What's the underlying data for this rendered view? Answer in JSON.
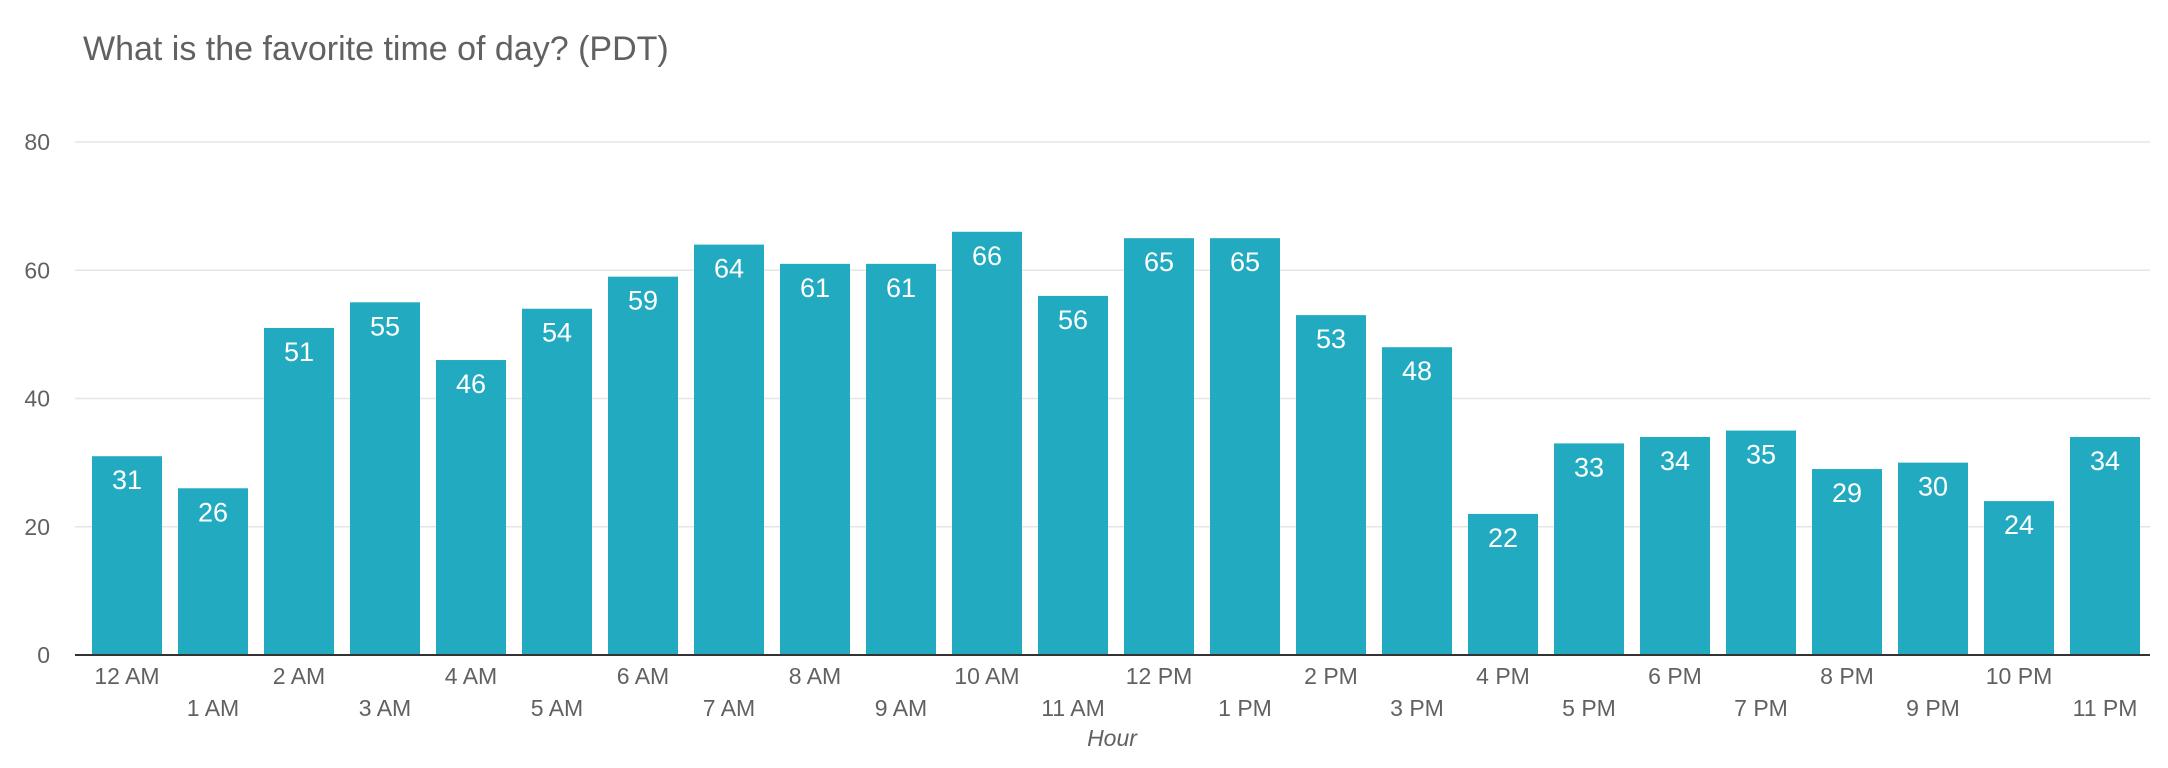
{
  "chart_data": {
    "type": "bar",
    "title": "What is the favorite time of day? (PDT)",
    "xlabel": "Hour",
    "ylabel": "",
    "ylim": [
      0,
      80
    ],
    "yticks": [
      0,
      20,
      40,
      60,
      80
    ],
    "grid": true,
    "bar_color": "#22abc0",
    "categories": [
      "12 AM",
      "1 AM",
      "2 AM",
      "3 AM",
      "4 AM",
      "5 AM",
      "6 AM",
      "7 AM",
      "8 AM",
      "9 AM",
      "10 AM",
      "11 AM",
      "12 PM",
      "1 PM",
      "2 PM",
      "3 PM",
      "4 PM",
      "5 PM",
      "6 PM",
      "7 PM",
      "8 PM",
      "9 PM",
      "10 PM",
      "11 PM"
    ],
    "values": [
      31,
      26,
      51,
      55,
      46,
      54,
      59,
      64,
      61,
      61,
      66,
      56,
      65,
      65,
      53,
      48,
      22,
      33,
      34,
      35,
      29,
      30,
      24,
      34
    ]
  }
}
